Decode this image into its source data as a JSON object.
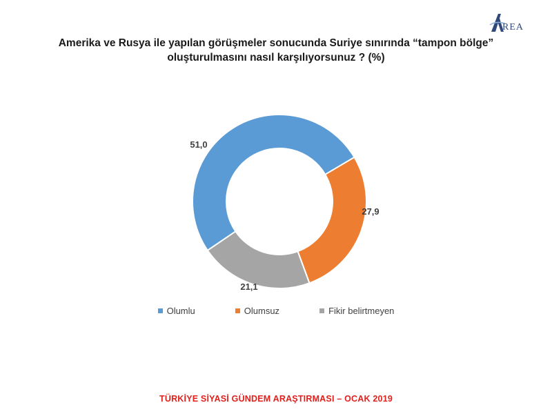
{
  "logo": {
    "text": "REA"
  },
  "chart_data": {
    "type": "pie",
    "title_line1": "Amerika ve Rusya ile yapılan görüşmeler sonucunda Suriye sınırında “tampon bölge”",
    "title_line2": "oluşturulmasını nasıl karşılıyorsunuz ? (%)",
    "categories": [
      "Olumlu",
      "Olumsuz",
      "Fikir belirtmeyen"
    ],
    "values": [
      51.0,
      27.9,
      21.1
    ],
    "value_labels": [
      "51,0",
      "27,9",
      "21,1"
    ],
    "colors": [
      "#5b9bd5",
      "#ed7d31",
      "#a5a5a5"
    ],
    "legend_position": "bottom",
    "donut": true
  },
  "footer": {
    "text": "TÜRKİYE SİYASİ GÜNDEM ARAŞTIRMASI – OCAK 2019"
  }
}
